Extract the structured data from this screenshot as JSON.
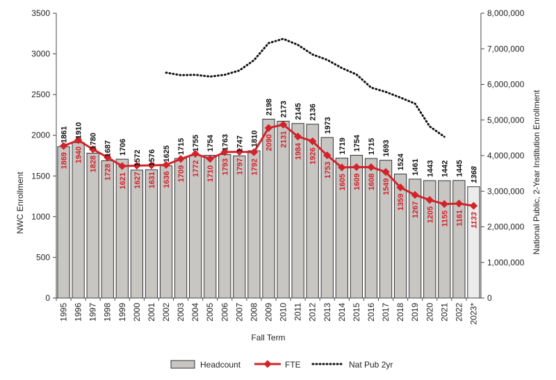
{
  "chart_data": {
    "type": "bar",
    "categories": [
      "1995",
      "1996",
      "1997",
      "1998",
      "1999",
      "2000",
      "2001",
      "2002",
      "2003",
      "2004",
      "2005",
      "2006",
      "2007",
      "2008",
      "2009",
      "2010",
      "2011",
      "2012",
      "2013",
      "2014",
      "2015",
      "2016",
      "2017",
      "2018",
      "2019",
      "2020",
      "2021",
      "2022",
      "2023*"
    ],
    "series": [
      {
        "name": "Headcount",
        "type": "bar",
        "axis": "left",
        "values": [
          1861,
          1910,
          1780,
          1687,
          1706,
          1572,
          1576,
          1625,
          1715,
          1755,
          1754,
          1763,
          1747,
          1810,
          2198,
          2173,
          2145,
          2136,
          1973,
          1719,
          1754,
          1715,
          1693,
          1524,
          1461,
          1443,
          1442,
          1445,
          1368
        ],
        "color": "#c8c6c3",
        "labels": [
          "1861",
          "1910",
          "1780",
          "1687",
          "1706",
          "1572",
          "1576",
          "1625",
          "1715",
          "1755",
          "1754",
          "1763",
          "1747",
          "1810",
          "2198",
          "2173",
          "2145",
          "2136",
          "1973",
          "1719",
          "1754",
          "1715",
          "1693",
          "1524",
          "1461",
          "1443",
          "1442",
          "1445",
          "1368"
        ]
      },
      {
        "name": "FTE",
        "type": "line",
        "axis": "left",
        "values": [
          1869,
          1940,
          1828,
          1728,
          1621,
          1627,
          1631,
          1636,
          1709,
          1772,
          1710,
          1793,
          1797,
          1792,
          2090,
          2131,
          1984,
          1926,
          1753,
          1605,
          1609,
          1608,
          1549,
          1359,
          1267,
          1205,
          1155,
          1161,
          1133
        ],
        "color": "#d2232a",
        "labels": [
          "1869",
          "1940",
          "1828",
          "1728",
          "1621",
          "1627",
          "1631",
          "1636",
          "1709",
          "1772",
          "1710",
          "1793",
          "1797",
          "1792",
          "2090",
          "2131",
          "1984",
          "1926",
          "1753",
          "1605",
          "1609",
          "1608",
          "1549",
          "1359",
          "1267",
          "1205",
          "1155",
          "1161",
          "1133"
        ]
      },
      {
        "name": "Nat Pub 2yr",
        "type": "line",
        "axis": "right",
        "style": "dotted",
        "x": [
          "2002",
          "2003",
          "2004",
          "2005",
          "2006",
          "2007",
          "2008",
          "2009",
          "2010",
          "2011",
          "2012",
          "2013",
          "2014",
          "2015",
          "2016",
          "2017",
          "2018",
          "2019",
          "2020",
          "2021"
        ],
        "values": [
          6330000,
          6260000,
          6270000,
          6220000,
          6270000,
          6390000,
          6680000,
          7160000,
          7280000,
          7110000,
          6840000,
          6690000,
          6460000,
          6280000,
          5910000,
          5790000,
          5630000,
          5460000,
          4820000,
          4530000
        ],
        "color": "#111111"
      }
    ],
    "xlabel": "Fall Term",
    "ylabel": "NWC Enrollment",
    "y2label": "National Public, 2-Year Institution Enrollment",
    "ylim": [
      0,
      3500
    ],
    "y2lim": [
      0,
      8000000
    ],
    "yticks": [
      "0",
      "500",
      "1000",
      "1500",
      "2000",
      "2500",
      "3000",
      "3500"
    ],
    "y2ticks": [
      "0",
      "1,000,000",
      "2,000,000",
      "3,000,000",
      "4,000,000",
      "5,000,000",
      "6,000,000",
      "7,000,000",
      "8,000,000"
    ],
    "grid": false,
    "legend": "bottom",
    "highlight_last_category": true
  }
}
